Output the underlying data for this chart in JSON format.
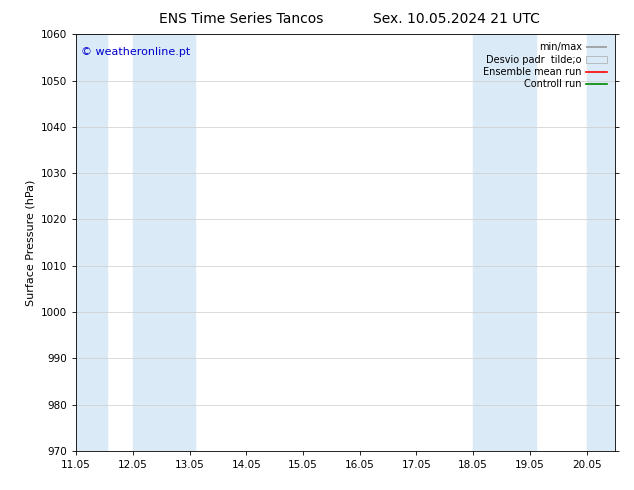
{
  "title": "ENS Time Series Tancos",
  "title2": "Sex. 10.05.2024 21 UTC",
  "ylabel": "Surface Pressure (hPa)",
  "ylim": [
    970,
    1060
  ],
  "yticks": [
    970,
    980,
    990,
    1000,
    1010,
    1020,
    1030,
    1040,
    1050,
    1060
  ],
  "xlim_days_start": 0.0,
  "xlim_days_end": 9.5,
  "xtick_offsets": [
    0,
    1,
    2,
    3,
    4,
    5,
    6,
    7,
    8,
    9
  ],
  "xtick_labels": [
    "11.05",
    "12.05",
    "13.05",
    "14.05",
    "15.05",
    "16.05",
    "17.05",
    "18.05",
    "19.05",
    "20.05"
  ],
  "shaded_bands": [
    {
      "start": 0.0,
      "end": 0.55
    },
    {
      "start": 1.0,
      "end": 2.1
    },
    {
      "start": 7.0,
      "end": 8.1
    },
    {
      "start": 9.0,
      "end": 9.5
    }
  ],
  "band_color": "#daeaf7",
  "watermark": "© weatheronline.pt",
  "watermark_color": "#0000cc",
  "watermark_fontsize": 8,
  "bg_color": "#ffffff",
  "plot_bg_color": "#ffffff",
  "grid_color": "#cccccc",
  "title_fontsize": 10,
  "axis_label_fontsize": 8,
  "tick_fontsize": 7.5
}
